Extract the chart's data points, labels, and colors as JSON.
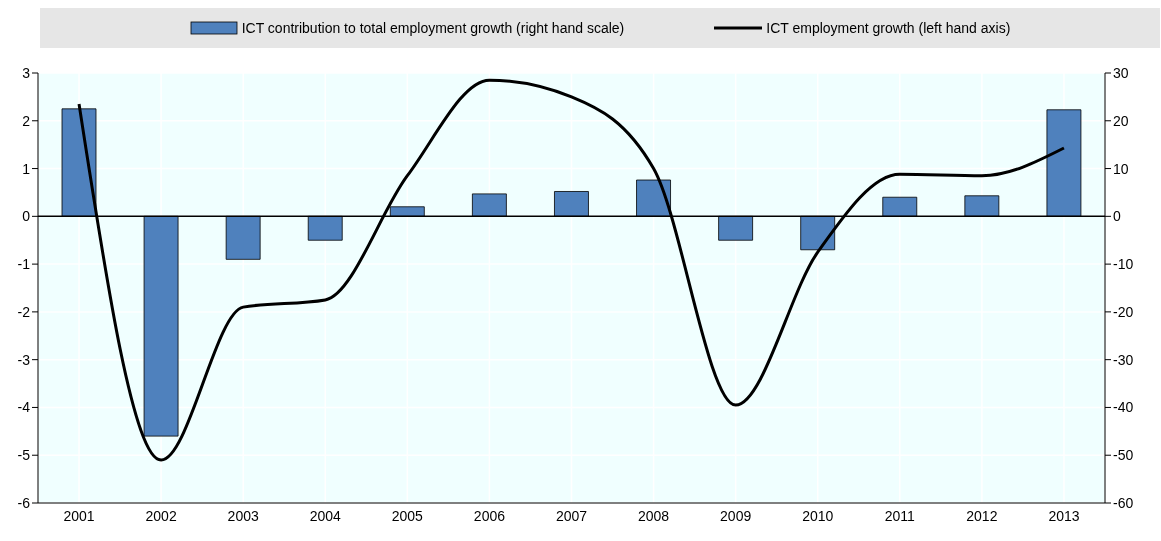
{
  "chart_data": {
    "type": "bar",
    "categories": [
      "2001",
      "2002",
      "2003",
      "2004",
      "2005",
      "2006",
      "2007",
      "2008",
      "2009",
      "2010",
      "2011",
      "2012",
      "2013"
    ],
    "series": [
      {
        "name": "ICT contribution to total employment growth (right hand scale)",
        "axis": "y2",
        "color": "#4f81bd",
        "values": [
          22.5,
          -46,
          -9,
          -5,
          2,
          4.7,
          5.2,
          7.6,
          -5,
          -7,
          4,
          4.3,
          22.3
        ]
      },
      {
        "name": "ICT employment growth (left hand axis)",
        "type": "line",
        "color": "#000000",
        "values": [
          2.35,
          -5.1,
          -1.9,
          -1.75,
          0.85,
          2.85,
          2.5,
          1.0,
          -3.95,
          -0.75,
          0.88,
          0.85,
          1.43
        ]
      }
    ],
    "ylim": [
      -6,
      3
    ],
    "yticks": [
      -6,
      -5,
      -4,
      -3,
      -2,
      -1,
      0,
      1,
      2,
      3
    ],
    "y2lim": [
      -60,
      30
    ],
    "y2ticks": [
      -60,
      -50,
      -40,
      -30,
      -20,
      -10,
      0,
      10,
      20,
      30
    ],
    "grid": true,
    "legend": "top",
    "marker": "none",
    "line_style": "solid"
  }
}
